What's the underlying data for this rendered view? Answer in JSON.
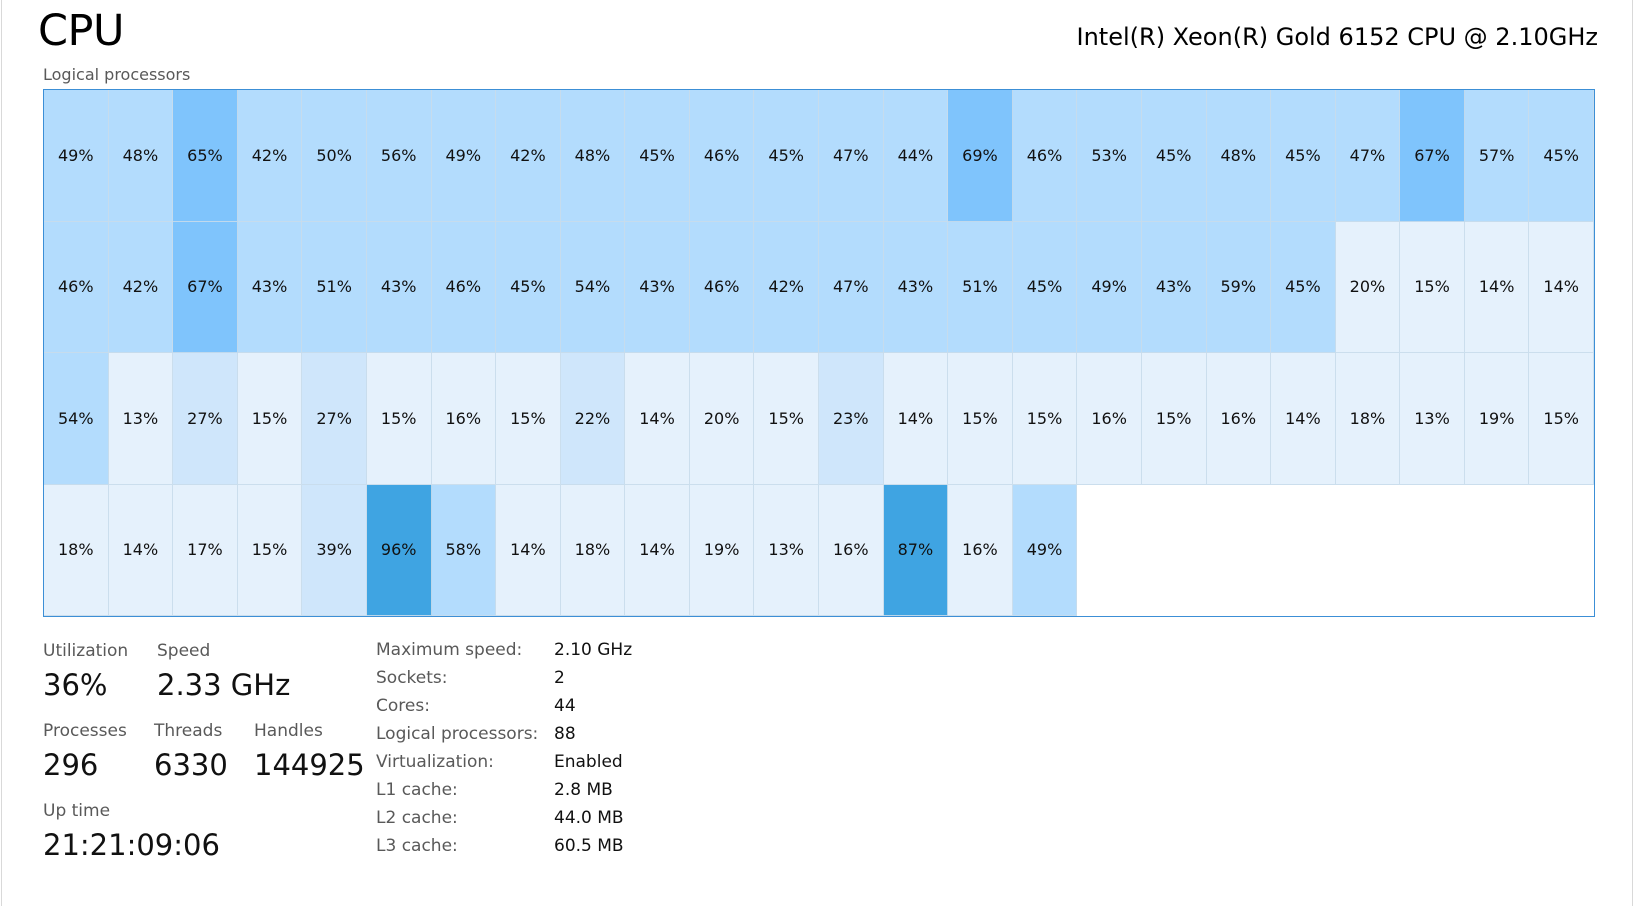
{
  "header": {
    "title": "CPU",
    "model": "Intel(R) Xeon(R) Gold 6152 CPU @ 2.10GHz"
  },
  "graph": {
    "label": "Logical processors",
    "processors": [
      49,
      48,
      65,
      42,
      50,
      56,
      49,
      42,
      48,
      45,
      46,
      45,
      47,
      44,
      69,
      46,
      53,
      45,
      48,
      45,
      47,
      67,
      57,
      45,
      46,
      42,
      67,
      43,
      51,
      43,
      46,
      45,
      54,
      43,
      46,
      42,
      47,
      43,
      51,
      45,
      49,
      43,
      59,
      45,
      20,
      15,
      14,
      14,
      54,
      13,
      27,
      15,
      27,
      15,
      16,
      15,
      22,
      14,
      20,
      15,
      23,
      14,
      15,
      15,
      16,
      15,
      16,
      14,
      18,
      13,
      19,
      15,
      18,
      14,
      17,
      15,
      39,
      96,
      58,
      14,
      18,
      14,
      19,
      13,
      16,
      87,
      16,
      49
    ],
    "colors": {
      "level1": "#e5f1fc",
      "level2": "#cfe6fb",
      "level3": "#b3dcfd",
      "level4": "#7fc4fc",
      "level5": "#3fa4e2",
      "border": "#3c8fd6"
    }
  },
  "stats": {
    "utilization": {
      "label": "Utilization",
      "value": "36%"
    },
    "speed": {
      "label": "Speed",
      "value": "2.33 GHz"
    },
    "processes": {
      "label": "Processes",
      "value": "296"
    },
    "threads": {
      "label": "Threads",
      "value": "6330"
    },
    "handles": {
      "label": "Handles",
      "value": "144925"
    },
    "uptime": {
      "label": "Up time",
      "value": "21:21:09:06"
    }
  },
  "details": [
    {
      "key": "Maximum speed:",
      "value": "2.10 GHz"
    },
    {
      "key": "Sockets:",
      "value": "2"
    },
    {
      "key": "Cores:",
      "value": "44"
    },
    {
      "key": "Logical processors:",
      "value": "88"
    },
    {
      "key": "Virtualization:",
      "value": "Enabled"
    },
    {
      "key": "L1 cache:",
      "value": "2.8 MB"
    },
    {
      "key": "L2 cache:",
      "value": "44.0 MB"
    },
    {
      "key": "L3 cache:",
      "value": "60.5 MB"
    }
  ]
}
